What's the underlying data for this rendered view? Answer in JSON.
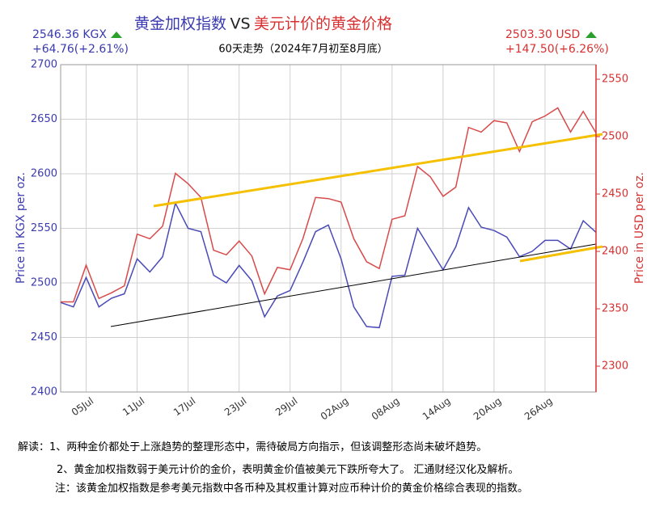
{
  "chart_data": {
    "type": "line",
    "title_left": "黄金加权指数",
    "title_vs": "VS",
    "title_right": "美元计价的黄金价格",
    "subtitle": "60天走势（2024年7月初至8月底）",
    "left_price": "2546.36 KGX",
    "left_change": "+64.76(+2.61%)",
    "right_price": "2503.30 USD",
    "right_change": "+147.50(+6.26%)",
    "ylabel": "Price in KGX per oz.",
    "y2label": "Price in USD per oz.",
    "categories": [
      null,
      null,
      "05Jul",
      null,
      null,
      null,
      "11Jul",
      null,
      null,
      null,
      "17Jul",
      null,
      null,
      null,
      "23Jul",
      null,
      null,
      null,
      "29Jul",
      null,
      null,
      null,
      "02Aug",
      null,
      null,
      null,
      "08Aug",
      null,
      null,
      null,
      "14Aug",
      null,
      null,
      null,
      "20Aug",
      null,
      null,
      null,
      "26Aug",
      null,
      null,
      null,
      null
    ],
    "series": [
      {
        "name": "黄金加权指数",
        "color": "#4a4ab8",
        "values": [
          2482,
          2478,
          2505,
          2478,
          2486,
          2490,
          2522,
          2510,
          2524,
          2573,
          2550,
          2547,
          2507,
          2500,
          2516,
          2502,
          2469,
          2488,
          2493,
          2519,
          2547,
          2553,
          2522,
          2478,
          2460,
          2459,
          2506,
          2507,
          2550,
          2531,
          2512,
          2533,
          2569,
          2551,
          2548,
          2542,
          2524,
          2529,
          2539,
          2539,
          2531,
          2557,
          2546.36
        ]
      },
      {
        "name": "美元计价的黄金价格",
        "color": "#d84a4a",
        "axis": "y2",
        "values": [
          2356,
          2356,
          2388,
          2359,
          2364,
          2370,
          2415,
          2411,
          2422,
          2468,
          2459,
          2447,
          2401,
          2397,
          2409,
          2396,
          2363,
          2386,
          2384,
          2411,
          2447,
          2446,
          2443,
          2411,
          2391,
          2385,
          2428,
          2431,
          2474,
          2465,
          2448,
          2456,
          2508,
          2504,
          2514,
          2512,
          2487,
          2513,
          2518,
          2525,
          2504,
          2522,
          2503.3
        ]
      }
    ],
    "ylim": [
      2400,
      2700
    ],
    "yticks": [
      2400,
      2450,
      2500,
      2550,
      2600,
      2650,
      2700
    ],
    "y2lim": [
      2277.5,
      2562.7
    ],
    "y2ticks": [
      2300,
      2350,
      2400,
      2450,
      2500,
      2550
    ],
    "grid": true
  },
  "notes": [
    "解读：1、两种金价都处于上涨趋势的整理形态中，需待破局方向指示，但该调整形态尚未破坏趋势。",
    "2、黄金加权指数弱于美元计价的金价，表明黄金价值被美元下跌所夸大了。 汇通财经汉化及解析。",
    "注：该黄金加权指数是参考美元指数中各币种及其权重计算对应币种计价的黄金价格综合表现的指数。"
  ]
}
